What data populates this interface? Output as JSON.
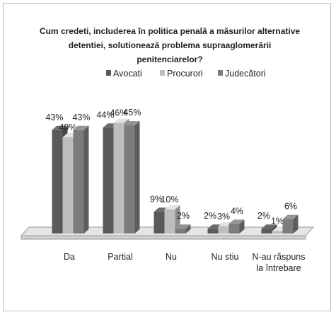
{
  "chart_data": {
    "type": "bar3d",
    "title": "Cum credeti, includerea în politica penală a măsurilor alternative detentiei, solutionează problema supraaglomerării penitenciarelor?",
    "categories": [
      "Da",
      "Partial",
      "Nu",
      "Nu stiu",
      "N-au răspuns la întrebare"
    ],
    "series": [
      {
        "name": "Avocati",
        "color": "#5a5a5a",
        "values": [
          43,
          44,
          9,
          2,
          2
        ],
        "value_labels": [
          "43%",
          "44%",
          "9%",
          "2%",
          "2%"
        ]
      },
      {
        "name": "Procurori",
        "color": "#bdbdbd",
        "values": [
          40,
          46,
          10,
          3,
          1
        ],
        "value_labels": [
          "40%",
          "46%",
          "10%",
          "3%",
          "1%"
        ]
      },
      {
        "name": "Judecători",
        "color": "#7c7c7c",
        "values": [
          43,
          45,
          2,
          4,
          6
        ],
        "value_labels": [
          "43%",
          "45%",
          "2%",
          "4%",
          "6%"
        ]
      }
    ],
    "legend": "top"
  }
}
